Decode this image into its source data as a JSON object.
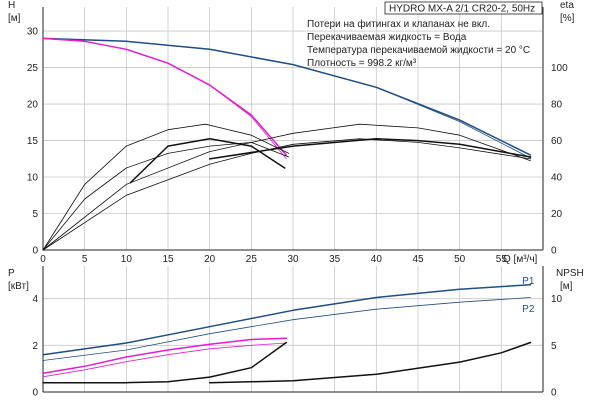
{
  "title": "HYDRO MX-A 2/1 CR20-2, 50Hz",
  "notes": [
    "Потери на фитингах и клапанах не вкл.",
    "Перекачиваемая жидкость = Вода",
    "Температура перекачиваемой жидкости = 20 °C",
    "Плотность = 998.2 кг/м³"
  ],
  "colors": {
    "blue": "#1f4e85",
    "magenta": "#e020d0",
    "black": "#111111",
    "grid": "#c8c8c8"
  },
  "chart_data": [
    {
      "type": "line",
      "id": "top",
      "xlabel": "Q [м³/ч]",
      "ylabel_left": "H",
      "ylabel_left_unit": "[м]",
      "ylabel_right": "eta",
      "ylabel_right_unit": "[%]",
      "xlim": [
        0,
        60
      ],
      "ylim_left": [
        0,
        33.3
      ],
      "ylim_right": [
        0,
        133.3
      ],
      "xticks": [
        0,
        5,
        10,
        15,
        20,
        25,
        30,
        35,
        40,
        45,
        50,
        55
      ],
      "yticks_left": [
        0,
        5,
        10,
        15,
        20,
        25,
        30
      ],
      "yticks_right": [
        0,
        20,
        40,
        60,
        80,
        100
      ],
      "grid": true,
      "series": [
        {
          "axis": "left",
          "color": "blue",
          "width": 1.5,
          "points": [
            [
              0,
              29
            ],
            [
              10,
              28.6
            ],
            [
              20,
              27.5
            ],
            [
              30,
              25.4
            ],
            [
              40,
              22.3
            ],
            [
              50,
              17.8
            ],
            [
              58.5,
              13
            ]
          ]
        },
        {
          "axis": "left",
          "color": "blue",
          "width": 0.8,
          "points": [
            [
              0,
              29
            ],
            [
              10,
              28.6
            ],
            [
              20,
              27.5
            ],
            [
              30,
              25.4
            ],
            [
              40,
              22.3
            ],
            [
              50,
              17.6
            ],
            [
              58.5,
              12.6
            ]
          ]
        },
        {
          "axis": "left",
          "color": "magenta",
          "width": 1.5,
          "points": [
            [
              0,
              29
            ],
            [
              5,
              28.6
            ],
            [
              10,
              27.5
            ],
            [
              15,
              25.6
            ],
            [
              20,
              22.6
            ],
            [
              25,
              18.5
            ],
            [
              29.2,
              13
            ]
          ]
        },
        {
          "axis": "left",
          "color": "magenta",
          "width": 0.8,
          "points": [
            [
              0,
              29
            ],
            [
              5,
              28.6
            ],
            [
              10,
              27.5
            ],
            [
              15,
              25.6
            ],
            [
              20,
              22.6
            ],
            [
              25,
              18.3
            ],
            [
              29.2,
              12.5
            ]
          ]
        },
        {
          "axis": "right",
          "color": "black",
          "width": 1.5,
          "points": [
            [
              10.5,
              37
            ],
            [
              15,
              57
            ],
            [
              20,
              61
            ],
            [
              25,
              57
            ],
            [
              29,
              45
            ]
          ]
        },
        {
          "axis": "right",
          "color": "black",
          "width": 0.8,
          "points": [
            [
              0,
              0
            ],
            [
              5,
              36
            ],
            [
              10,
              57
            ],
            [
              15,
              66
            ],
            [
              19.5,
              69
            ],
            [
              25,
              63
            ],
            [
              29.5,
              53
            ]
          ]
        },
        {
          "axis": "right",
          "color": "black",
          "width": 0.8,
          "points": [
            [
              0,
              0
            ],
            [
              5,
              28
            ],
            [
              10,
              45
            ],
            [
              15,
              53
            ],
            [
              20,
              57
            ],
            [
              25,
              59
            ],
            [
              29.5,
              51
            ]
          ]
        },
        {
          "axis": "right",
          "color": "black",
          "width": 0.8,
          "points": [
            [
              0,
              0
            ],
            [
              10,
              36
            ],
            [
              20,
              54
            ],
            [
              30,
              64
            ],
            [
              38,
              69
            ],
            [
              45,
              67
            ],
            [
              50,
              63
            ],
            [
              58.5,
              49
            ]
          ]
        },
        {
          "axis": "right",
          "color": "black",
          "width": 0.8,
          "points": [
            [
              0,
              0
            ],
            [
              10,
              30
            ],
            [
              20,
              47
            ],
            [
              25,
              53
            ],
            [
              30,
              58
            ],
            [
              38,
              61
            ],
            [
              45,
              59
            ],
            [
              50,
              56
            ],
            [
              58.5,
              50
            ]
          ]
        },
        {
          "axis": "right",
          "color": "black",
          "width": 1.5,
          "points": [
            [
              20,
              50
            ],
            [
              30,
              57
            ],
            [
              40,
              61
            ],
            [
              45,
              60
            ],
            [
              50,
              58
            ],
            [
              58.5,
              51
            ]
          ]
        }
      ]
    },
    {
      "type": "line",
      "id": "bottom",
      "ylabel_left": "P",
      "ylabel_left_unit": "[кВт]",
      "ylabel_right": "NPSH",
      "ylabel_right_unit": "[м]",
      "xlim": [
        0,
        60
      ],
      "ylim_left": [
        0,
        5.4
      ],
      "ylim_right": [
        0,
        13.5
      ],
      "yticks_left": [
        0,
        2,
        4
      ],
      "yticks_right": [
        0,
        5,
        10
      ],
      "grid": true,
      "series": [
        {
          "axis": "left",
          "color": "blue",
          "width": 1.5,
          "name": "P1",
          "points": [
            [
              0,
              1.6
            ],
            [
              10,
              2.1
            ],
            [
              20,
              2.8
            ],
            [
              30,
              3.5
            ],
            [
              40,
              4.05
            ],
            [
              50,
              4.4
            ],
            [
              58.5,
              4.6
            ]
          ]
        },
        {
          "axis": "left",
          "color": "blue",
          "width": 0.8,
          "name": "P2",
          "points": [
            [
              0,
              1.35
            ],
            [
              10,
              1.8
            ],
            [
              20,
              2.5
            ],
            [
              30,
              3.1
            ],
            [
              40,
              3.55
            ],
            [
              50,
              3.85
            ],
            [
              58.5,
              4.05
            ]
          ]
        },
        {
          "axis": "left",
          "color": "magenta",
          "width": 1.5,
          "points": [
            [
              0,
              0.8
            ],
            [
              5,
              1.1
            ],
            [
              10,
              1.5
            ],
            [
              15,
              1.8
            ],
            [
              20,
              2.05
            ],
            [
              25,
              2.25
            ],
            [
              29.2,
              2.3
            ]
          ]
        },
        {
          "axis": "left",
          "color": "magenta",
          "width": 0.8,
          "points": [
            [
              0,
              0.65
            ],
            [
              5,
              0.95
            ],
            [
              10,
              1.3
            ],
            [
              15,
              1.6
            ],
            [
              20,
              1.85
            ],
            [
              25,
              2.0
            ],
            [
              29.2,
              2.1
            ]
          ]
        },
        {
          "axis": "right",
          "color": "black",
          "width": 1.5,
          "points": [
            [
              0,
              1
            ],
            [
              10,
              1
            ],
            [
              15,
              1.1
            ],
            [
              20,
              1.6
            ],
            [
              25,
              2.6
            ],
            [
              29.2,
              5.3
            ]
          ]
        },
        {
          "axis": "right",
          "color": "black",
          "width": 1.5,
          "points": [
            [
              20,
              1
            ],
            [
              30,
              1.2
            ],
            [
              40,
              1.9
            ],
            [
              50,
              3.2
            ],
            [
              55,
              4.2
            ],
            [
              58.5,
              5.3
            ]
          ]
        }
      ],
      "labels": [
        {
          "text": "P1",
          "x": 57.5,
          "y": 4.75,
          "axis": "left"
        },
        {
          "text": "P2",
          "x": 57.5,
          "y": 3.55,
          "axis": "left"
        }
      ]
    }
  ]
}
